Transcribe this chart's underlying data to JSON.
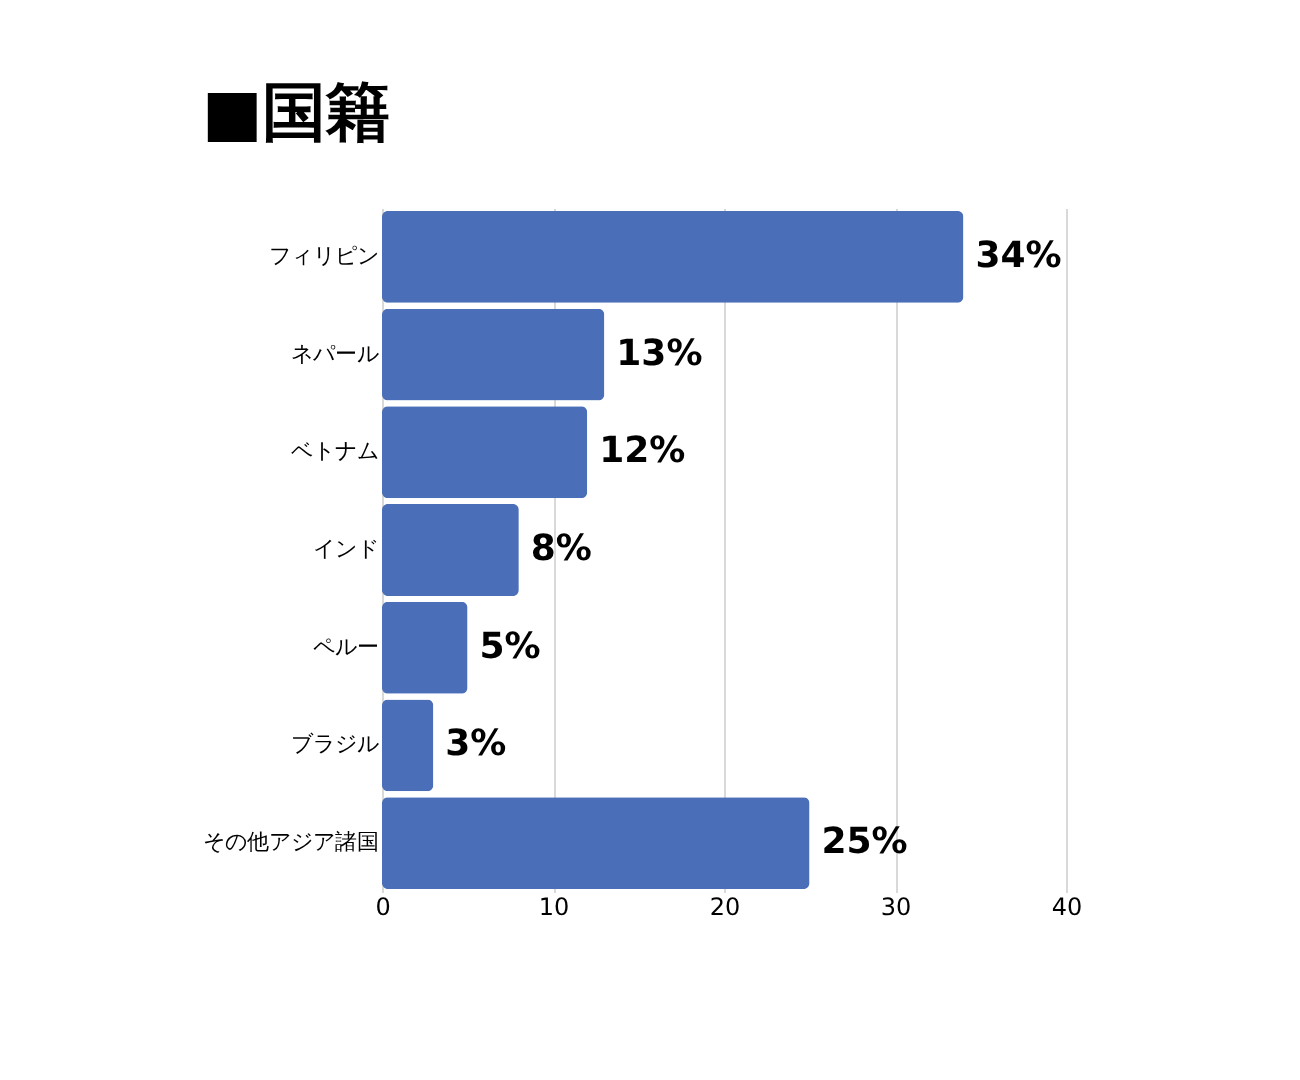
{
  "chart_data": {
    "type": "bar",
    "orientation": "horizontal",
    "title": "■国籍",
    "categories": [
      "フィリピン",
      "ネパール",
      "ベトナム",
      "インド",
      "ペルー",
      "ブラジル",
      "その他アジア諸国"
    ],
    "values": [
      34,
      13,
      12,
      8,
      5,
      3,
      25
    ],
    "value_labels": [
      "34%",
      "13%",
      "12%",
      "8%",
      "5%",
      "3%",
      "25%"
    ],
    "color": "#4a6eb8",
    "xlim": [
      0,
      40
    ],
    "xticks": [
      0,
      10,
      20,
      30,
      40
    ],
    "grid": "x"
  }
}
